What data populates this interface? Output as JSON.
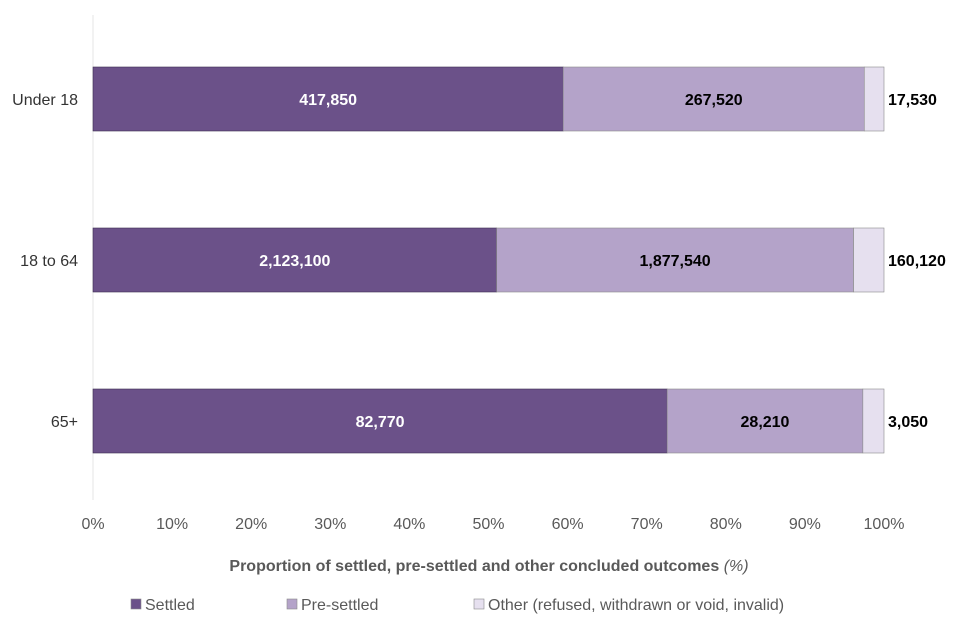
{
  "chart_data": {
    "type": "bar",
    "orientation": "horizontal",
    "stacked": "percent",
    "categories": [
      "Under 18",
      "18 to 64",
      "65+"
    ],
    "series": [
      {
        "name": "Settled",
        "values": [
          417850,
          2123100,
          82770
        ],
        "color": "#6b5189"
      },
      {
        "name": "Pre-settled",
        "values": [
          267520,
          1877540,
          28210
        ],
        "color": "#b4a3c9"
      },
      {
        "name": "Other (refused, withdrawn or void, invalid)",
        "values": [
          17530,
          160120,
          3050
        ],
        "color": "#e6e0ef"
      }
    ],
    "data_labels": [
      [
        "417,850",
        "267,520",
        "17,530"
      ],
      [
        "2,123,100",
        "1,877,540",
        "160,120"
      ],
      [
        "82,770",
        "28,210",
        "3,050"
      ]
    ],
    "xlabel": "Proportion of settled, pre-settled and other concluded outcomes",
    "xlabel_unit": "(%)",
    "xlim": [
      0,
      100
    ],
    "xticks": [
      "0%",
      "10%",
      "20%",
      "30%",
      "40%",
      "50%",
      "60%",
      "70%",
      "80%",
      "90%",
      "100%"
    ],
    "grid": false,
    "legend_position": "bottom"
  }
}
